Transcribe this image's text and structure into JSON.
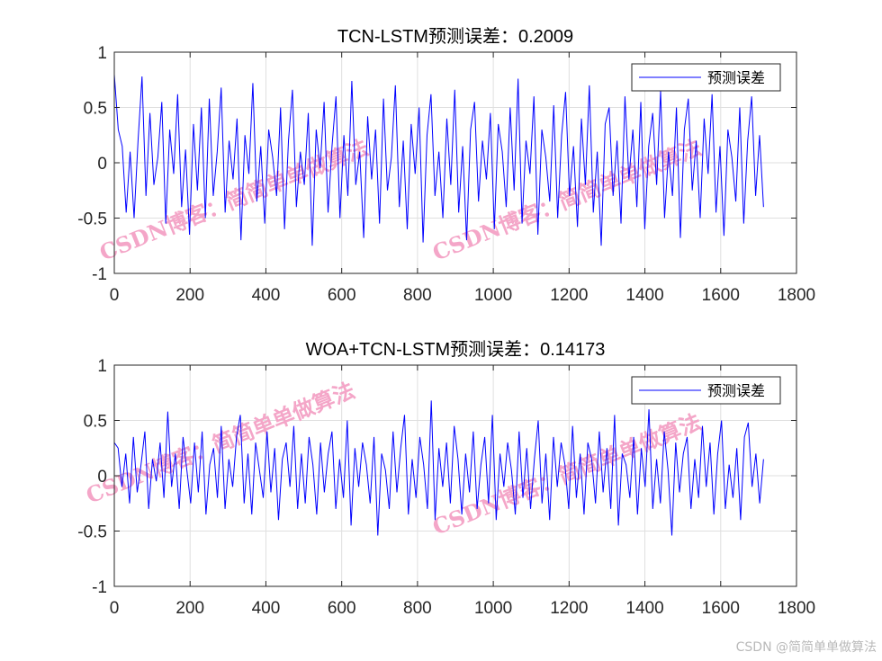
{
  "chart_data": [
    {
      "type": "line",
      "title": "TCN-LSTM预测误差：0.2009",
      "legend": [
        "预测误差"
      ],
      "legend_position": "top-right",
      "grid": true,
      "xlim": [
        0,
        1800
      ],
      "ylim": [
        -1,
        1
      ],
      "xticks": [
        0,
        200,
        400,
        600,
        800,
        1000,
        1200,
        1400,
        1600,
        1800
      ],
      "yticks": [
        -1,
        -0.5,
        0,
        0.5,
        1
      ],
      "xtick_labels": [
        "0",
        "200",
        "400",
        "600",
        "800",
        "1000",
        "1200",
        "1400",
        "1600",
        "1800"
      ],
      "ytick_labels": [
        "-1",
        "-0.5",
        "0",
        "0.5",
        "1"
      ],
      "color": "#0000ff",
      "series": [
        {
          "name": "预测误差",
          "x_start": 0,
          "x_end": 1713,
          "y_min": -0.78,
          "y_max": 0.8,
          "values": [
            0.8,
            0.3,
            0.15,
            -0.45,
            0.1,
            -0.5,
            0.2,
            0.78,
            -0.3,
            0.45,
            -0.2,
            0.05,
            0.55,
            -0.55,
            0.3,
            -0.1,
            0.62,
            -0.4,
            0.12,
            -0.65,
            0.35,
            -0.25,
            0.5,
            -0.5,
            0.58,
            -0.3,
            0.1,
            0.68,
            -0.45,
            0.2,
            -0.15,
            0.4,
            -0.7,
            0.25,
            -0.1,
            0.72,
            -0.35,
            0.15,
            -0.55,
            0.3,
            0.05,
            -0.3,
            0.5,
            -0.6,
            0.2,
            0.66,
            -0.4,
            0.1,
            -0.2,
            0.45,
            -0.75,
            0.3,
            -0.05,
            0.55,
            -0.45,
            0.15,
            0.6,
            -0.5,
            0.25,
            -0.3,
            0.74,
            -0.2,
            0.1,
            -0.68,
            0.42,
            -0.15,
            0.3,
            -0.55,
            0.58,
            -0.25,
            0.05,
            0.7,
            -0.4,
            0.2,
            -0.6,
            0.35,
            -0.1,
            0.5,
            -0.72,
            0.25,
            0.62,
            -0.3,
            0.1,
            -0.5,
            0.4,
            -0.2,
            0.66,
            -0.45,
            0.15,
            -0.7,
            0.3,
            0.55,
            -0.35,
            0.2,
            -0.15,
            0.45,
            -0.6,
            0.35,
            0.1,
            -0.4,
            0.5,
            -0.25,
            0.76,
            -0.55,
            0.2,
            -0.1,
            0.6,
            -0.65,
            0.3,
            0.05,
            -0.35,
            0.52,
            -0.5,
            0.25,
            0.64,
            -0.3,
            0.15,
            -0.58,
            0.4,
            -0.2,
            0.7,
            -0.45,
            0.1,
            -0.75,
            0.35,
            0.5,
            -0.3,
            0.2,
            -0.55,
            0.6,
            -0.15,
            0.3,
            -0.4,
            0.55,
            -0.6,
            0.15,
            0.45,
            -0.2,
            0.65,
            -0.5,
            0.1,
            -0.3,
            0.5,
            -0.68,
            0.3,
            0.58,
            -0.25,
            0.2,
            -0.5,
            0.4,
            -0.1,
            0.62,
            -0.45,
            0.15,
            -0.66,
            0.3,
            0.05,
            -0.35,
            0.5,
            -0.55,
            0.2,
            0.6,
            -0.3,
            0.25,
            -0.4
          ]
        }
      ]
    },
    {
      "type": "line",
      "title": "WOA+TCN-LSTM预测误差：0.14173",
      "legend": [
        "预测误差"
      ],
      "legend_position": "top-right",
      "grid": true,
      "xlim": [
        0,
        1800
      ],
      "ylim": [
        -1,
        1
      ],
      "xticks": [
        0,
        200,
        400,
        600,
        800,
        1000,
        1200,
        1400,
        1600,
        1800
      ],
      "yticks": [
        -1,
        -0.5,
        0,
        0.5,
        1
      ],
      "xtick_labels": [
        "0",
        "200",
        "400",
        "600",
        "800",
        "1000",
        "1200",
        "1400",
        "1600",
        "1800"
      ],
      "ytick_labels": [
        "-1",
        "-0.5",
        "0",
        "0.5",
        "1"
      ],
      "color": "#0000ff",
      "series": [
        {
          "name": "预测误差",
          "x_start": 0,
          "x_end": 1713,
          "y_min": -0.54,
          "y_max": 0.68,
          "values": [
            0.3,
            0.25,
            -0.1,
            0.2,
            -0.25,
            0.35,
            -0.15,
            0.1,
            0.4,
            -0.3,
            0.15,
            -0.05,
            0.3,
            -0.2,
            0.58,
            -0.1,
            0.2,
            -0.3,
            0.35,
            0.05,
            -0.25,
            0.3,
            -0.15,
            0.4,
            -0.35,
            0.1,
            0.25,
            -0.2,
            0.45,
            -0.3,
            0.15,
            -0.1,
            0.35,
            0.55,
            -0.25,
            0.2,
            -0.35,
            0.3,
            0.05,
            -0.2,
            0.4,
            -0.15,
            0.25,
            -0.4,
            0.15,
            0.3,
            -0.1,
            0.45,
            -0.3,
            0.2,
            -0.25,
            0.35,
            0.1,
            -0.35,
            0.3,
            -0.15,
            0.2,
            0.4,
            -0.3,
            0.15,
            -0.2,
            0.5,
            -0.45,
            0.25,
            -0.1,
            0.3,
            0.1,
            -0.25,
            0.35,
            -0.54,
            0.2,
            0.05,
            -0.3,
            0.4,
            -0.15,
            0.25,
            0.55,
            -0.35,
            0.15,
            -0.2,
            0.35,
            0.1,
            -0.3,
            0.68,
            -0.4,
            0.25,
            -0.1,
            0.3,
            -0.25,
            0.45,
            0.15,
            -0.35,
            0.2,
            -0.15,
            0.4,
            -0.3,
            0.1,
            0.35,
            -0.25,
            0.55,
            -0.4,
            0.2,
            -0.1,
            0.3,
            0.05,
            -0.35,
            0.4,
            -0.2,
            0.25,
            -0.3,
            0.15,
            0.5,
            -0.25,
            0.2,
            -0.4,
            0.35,
            -0.1,
            0.3,
            0.1,
            -0.3,
            0.45,
            -0.2,
            0.2,
            -0.35,
            0.3,
            0.15,
            -0.25,
            0.4,
            -0.15,
            0.25,
            -0.3,
            0.55,
            -0.45,
            0.2,
            0.1,
            -0.2,
            0.35,
            -0.35,
            0.25,
            -0.1,
            0.6,
            -0.3,
            0.15,
            -0.25,
            0.4,
            0.05,
            -0.54,
            0.3,
            -0.15,
            0.2,
            0.35,
            -0.3,
            0.15,
            -0.2,
            0.45,
            -0.1,
            0.3,
            -0.35,
            0.2,
            0.5,
            -0.3,
            0.1,
            -0.2,
            0.25,
            -0.4,
            0.35,
            0.48,
            -0.1,
            0.2,
            -0.25,
            0.15
          ]
        }
      ]
    }
  ],
  "watermarks": {
    "plot1": [
      "CSDN博客：简简单单做算法",
      "CSDN博客：简简单单做算法"
    ],
    "plot2": [
      "CSDN博客：简简单单做算法",
      "CSDN博客：简简单单做算法"
    ]
  },
  "footer_watermark": "CSDN @简简单单做算法"
}
